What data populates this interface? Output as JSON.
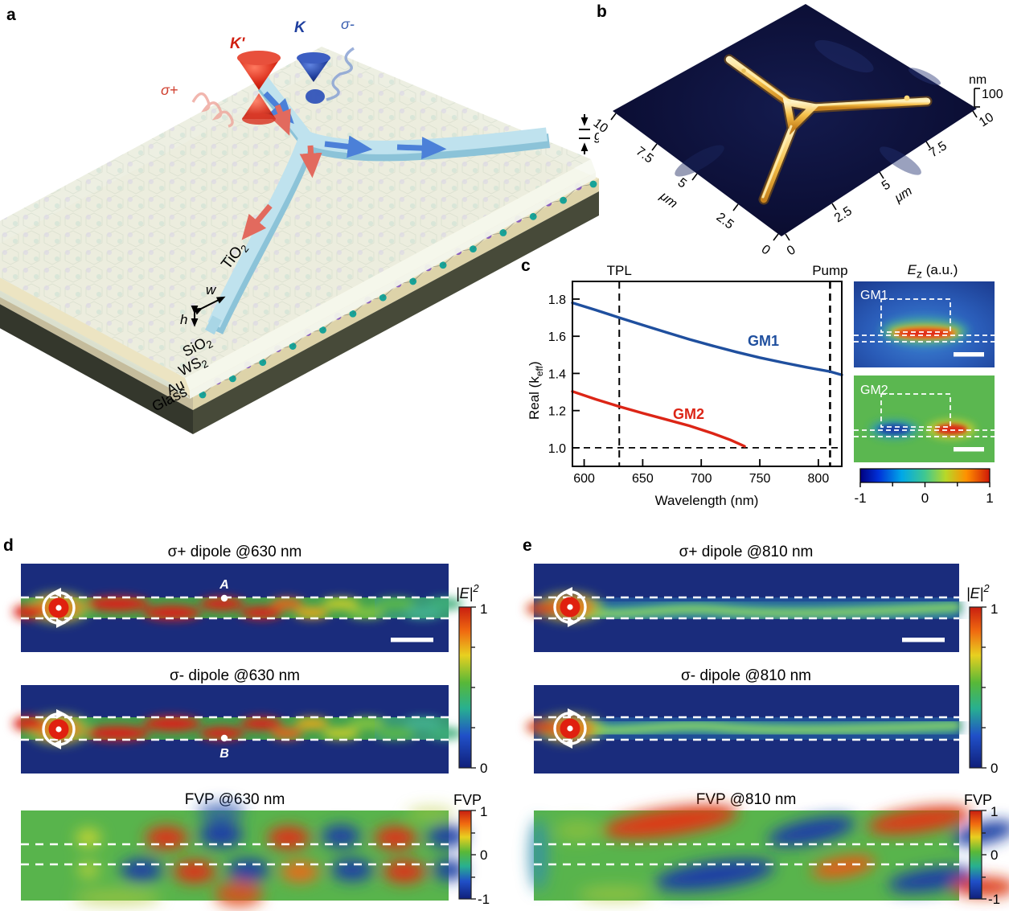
{
  "colors": {
    "map_bg_navy": "#1a2c7c",
    "map_bg_green": "#58b44c",
    "gm1_blue": "#1f4f9e",
    "gm2_red": "#dc2516",
    "waveguide_blue": "#bfe2ee",
    "gold_structure": "#f2b93e",
    "source_red": "#e0200f"
  },
  "panel_a": {
    "letter": "a",
    "k_prime": "K'",
    "k": "K",
    "sigma_plus": "σ+",
    "sigma_minus": "σ-",
    "gap": "g",
    "width": "w",
    "height": "h",
    "tio2": {
      "base": "TiO",
      "sub": "2"
    },
    "sio2": {
      "base": "SiO",
      "sub": "2"
    },
    "ws2": {
      "base": "WS",
      "sub": "2"
    },
    "au": "Au",
    "glass": "Glass"
  },
  "panel_b": {
    "letter": "b",
    "left_ticks": [
      "10",
      "7.5",
      "5",
      "2.5",
      "0"
    ],
    "left_unit": "μm",
    "right_ticks": [
      "0",
      "2.5",
      "5",
      "7.5",
      "10"
    ],
    "right_unit": "μm",
    "z_unit": "nm",
    "z_max": "100"
  },
  "panel_c": {
    "letter": "c",
    "ylabel": {
      "base": "Real (k",
      "sub": "eff",
      "close": ")"
    },
    "xlabel": "Wavelength (nm)",
    "xtick_labels": [
      "600",
      "650",
      "700",
      "750",
      "800"
    ],
    "ytick_labels": [
      "1.0",
      "1.2",
      "1.4",
      "1.6",
      "1.8"
    ],
    "ez_title": {
      "e": "E",
      "sub": "z",
      "rest": " (a.u.)"
    },
    "insets": [
      "GM1",
      "GM2"
    ],
    "ez_cbar_ticks": [
      "-1",
      "0",
      "1"
    ]
  },
  "panel_d": {
    "letter": "d",
    "titles": [
      "σ+ dipole @630 nm",
      "σ- dipole @630 nm",
      "FVP @630 nm"
    ],
    "markers": {
      "a": "A",
      "b": "B"
    },
    "e2_cbar": {
      "label": "|E|",
      "sup": "2",
      "ticks": [
        "1",
        "0"
      ]
    },
    "fvp_cbar": {
      "label": "FVP",
      "ticks": [
        "1",
        "0",
        "-1"
      ]
    }
  },
  "panel_e": {
    "letter": "e",
    "titles": [
      "σ+ dipole @810 nm",
      "σ- dipole @810 nm",
      "FVP @810 nm"
    ],
    "e2_cbar": {
      "label": "|E|",
      "sup": "2",
      "ticks": [
        "1",
        "0"
      ]
    },
    "fvp_cbar": {
      "label": "FVP",
      "ticks": [
        "1",
        "0",
        "-1"
      ]
    }
  },
  "chart_data": {
    "type": "line",
    "title": "",
    "xlabel": "Wavelength (nm)",
    "ylabel": "Real (keff)",
    "xlim": [
      590,
      820
    ],
    "ylim": [
      0.9,
      1.895
    ],
    "xticks": [
      600,
      650,
      700,
      750,
      800
    ],
    "yticks": [
      1.0,
      1.2,
      1.4,
      1.6,
      1.8
    ],
    "grid": false,
    "legend_position": "inline",
    "series": [
      {
        "name": "GM1",
        "color": "#1f4f9e",
        "x": [
          590,
          610,
          630,
          650,
          670,
          690,
          710,
          730,
          750,
          770,
          790,
          810,
          820
        ],
        "y": [
          1.78,
          1.741,
          1.7,
          1.66,
          1.621,
          1.583,
          1.548,
          1.515,
          1.485,
          1.458,
          1.433,
          1.41,
          1.392
        ]
      },
      {
        "name": "GM2",
        "color": "#dc2516",
        "x": [
          590,
          610,
          630,
          650,
          670,
          690,
          710,
          725,
          737
        ],
        "y": [
          1.303,
          1.261,
          1.222,
          1.186,
          1.152,
          1.118,
          1.077,
          1.042,
          1.008
        ]
      }
    ],
    "vlines": [
      {
        "x": 630,
        "label": "TPL"
      },
      {
        "x": 810,
        "label": "Pump"
      }
    ],
    "hlines": [
      {
        "y": 1.0
      }
    ]
  }
}
